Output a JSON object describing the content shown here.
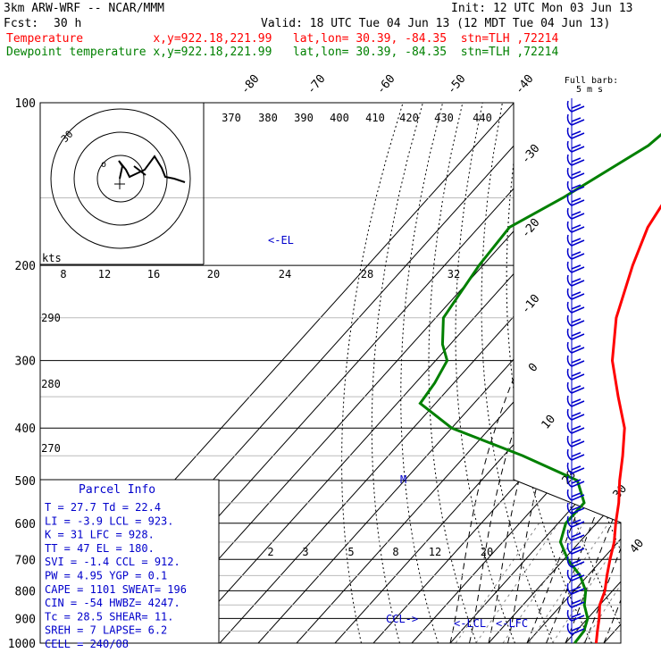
{
  "header": {
    "model": "3km ARW-WRF -- NCAR/MMM",
    "init": "Init: 12 UTC Mon 03 Jun 13",
    "fcst_label": "Fcst:",
    "fcst_value": "30 h",
    "valid": "Valid: 18 UTC Tue 04 Jun 13 (12 MDT Tue 04 Jun 13)",
    "temp_line": "Temperature          x,y=922.18,221.99   lat,lon= 30.39, -84.35  stn=TLH ,72214",
    "dew_line": "Dewpoint temperature x,y=922.18,221.99   lat,lon= 30.39, -84.35  stn=TLH ,72214"
  },
  "colors": {
    "temperature": "#ff0000",
    "dewpoint": "#008000",
    "wind_barbs": "#0000cc",
    "frame": "#000000"
  },
  "parcel_info": {
    "title": "Parcel Info",
    "rows": [
      "T  =   27.7  Td =  22.4",
      "LI =   -3.9  LCL =  923.",
      "K  =     31  LFC =  928.",
      "TT =     47  EL  =  180.",
      "SVI =  -1.4  CCL =  912.",
      "PW =   4.95  YGP =   0.1",
      "CAPE =  1101  SWEAT=  196",
      "CIN =   -54  HWBZ= 4247.",
      "Tc =   28.5  SHEAR=   11.",
      "SREH =    7  LAPSE=   6.2",
      "CELL = 240/08"
    ]
  },
  "hodograph": {
    "unit_label": "kts",
    "speed_rings": [
      "8",
      "12",
      "16",
      "20",
      "24",
      "28",
      "32"
    ],
    "ring_label": "30"
  },
  "barb_legend": {
    "line1": "Full barb:",
    "line2": "5 m s"
  },
  "chart_data": {
    "type": "skew-t",
    "pressure_axis": {
      "labels": [
        "100",
        "200",
        "300",
        "400",
        "500",
        "600",
        "700",
        "800",
        "900",
        "1000"
      ],
      "values": [
        100,
        200,
        300,
        400,
        500,
        600,
        700,
        800,
        900,
        1000
      ],
      "scale": "log",
      "range": [
        100,
        1000
      ]
    },
    "isotherm_labels": [
      "-80",
      "-70",
      "-60",
      "-50",
      "-40",
      "-30",
      "-20",
      "-10",
      "0",
      "10",
      "20",
      "30",
      "40"
    ],
    "theta_labels": [
      "370",
      "380",
      "390",
      "400",
      "410",
      "420",
      "430",
      "440"
    ],
    "theta_left_labels": [
      "290",
      "280",
      "270"
    ],
    "mixing_ratio_labels": [
      "2",
      "3",
      "5",
      "8",
      "12",
      "20"
    ],
    "annotations": [
      "<-EL",
      "CCL->",
      "<-LCL",
      "<-LFC"
    ],
    "series": [
      {
        "name": "Temperature",
        "points": [
          [
            100,
            -64
          ],
          [
            120,
            -61
          ],
          [
            150,
            -58
          ],
          [
            170,
            -56
          ],
          [
            200,
            -51
          ],
          [
            250,
            -43
          ],
          [
            300,
            -34
          ],
          [
            350,
            -24
          ],
          [
            400,
            -15
          ],
          [
            450,
            -9
          ],
          [
            500,
            -4
          ],
          [
            550,
            1
          ],
          [
            600,
            5
          ],
          [
            650,
            9
          ],
          [
            700,
            12
          ],
          [
            750,
            15
          ],
          [
            800,
            18
          ],
          [
            850,
            20
          ],
          [
            900,
            23
          ],
          [
            950,
            25.5
          ],
          [
            1000,
            28
          ]
        ]
      },
      {
        "name": "Dewpoint temperature",
        "points": [
          [
            100,
            -72
          ],
          [
            120,
            -75
          ],
          [
            150,
            -85
          ],
          [
            170,
            -92
          ],
          [
            200,
            -91
          ],
          [
            250,
            -88
          ],
          [
            280,
            -82
          ],
          [
            300,
            -77
          ],
          [
            330,
            -75
          ],
          [
            360,
            -74
          ],
          [
            400,
            -60
          ],
          [
            450,
            -35
          ],
          [
            500,
            -15
          ],
          [
            550,
            -8
          ],
          [
            600,
            -8
          ],
          [
            650,
            -5
          ],
          [
            700,
            1
          ],
          [
            750,
            8
          ],
          [
            800,
            13
          ],
          [
            850,
            16
          ],
          [
            900,
            20
          ],
          [
            950,
            22
          ],
          [
            1000,
            22.4
          ]
        ]
      }
    ],
    "grid": true
  }
}
